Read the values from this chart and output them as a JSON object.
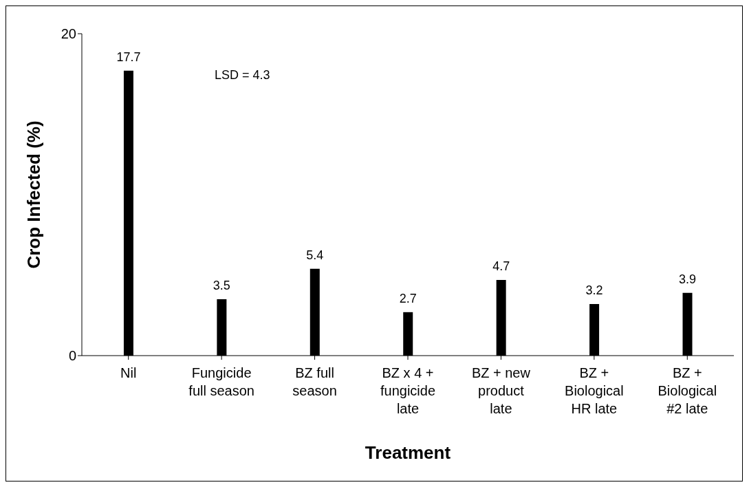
{
  "chart_data": {
    "type": "bar",
    "xlabel": "Treatment",
    "ylabel": "Crop Infected (%)",
    "categories": [
      "Nil",
      "Fungicide full season",
      "BZ full season",
      "BZ x 4 + fungicide late",
      "BZ + new product late",
      "BZ + Biological HR late",
      "BZ + Biological #2 late"
    ],
    "values": [
      17.7,
      3.5,
      5.4,
      2.7,
      4.7,
      3.2,
      3.9
    ],
    "color": "#000000",
    "ylim": [
      0,
      20
    ],
    "yticks": [
      0,
      20
    ],
    "grid": false,
    "legend": false,
    "data_labels": true,
    "annotations": [
      {
        "text": "LSD = 4.3"
      }
    ]
  }
}
